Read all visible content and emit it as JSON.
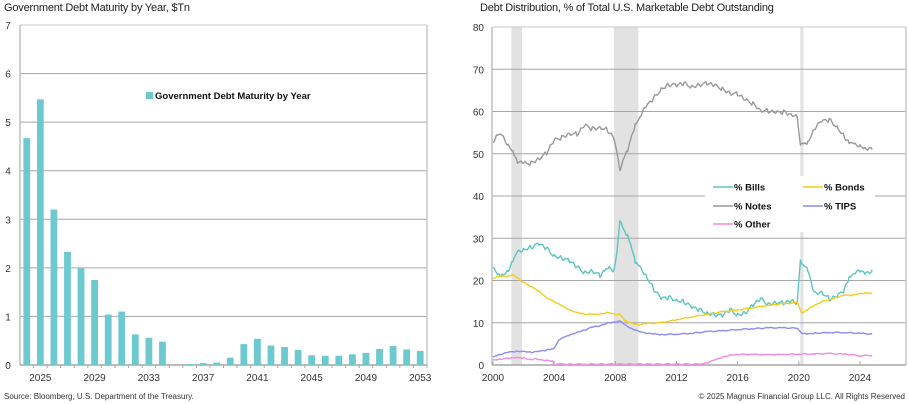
{
  "footer": {
    "source": "Source: Bloomberg, U.S. Department of the Treasury.",
    "copyright": "© 2025 Magnus Financial Group LLC. All Rights Reserved"
  },
  "chart_data": [
    {
      "type": "bar",
      "title": "Government Debt Maturity by Year, $Tn",
      "legend": [
        "Government Debt Maturity by Year"
      ],
      "legend_position": "top-center",
      "xlabel": "",
      "ylabel": "",
      "ylim": [
        0,
        7
      ],
      "yticks": [
        0,
        1,
        2,
        3,
        4,
        5,
        6,
        7
      ],
      "xtick_labels": [
        "2025",
        "2029",
        "2033",
        "2037",
        "2041",
        "2045",
        "2049",
        "2053"
      ],
      "grid": true,
      "color": "#6cc9cf",
      "categories": [
        "2024",
        "2025",
        "2026",
        "2027",
        "2028",
        "2029",
        "2030",
        "2031",
        "2032",
        "2033",
        "2034",
        "2035",
        "2036",
        "2037",
        "2038",
        "2039",
        "2040",
        "2041",
        "2042",
        "2043",
        "2044",
        "2045",
        "2046",
        "2047",
        "2048",
        "2049",
        "2050",
        "2051",
        "2052",
        "2053"
      ],
      "values": [
        4.67,
        5.47,
        3.2,
        2.33,
        1.99,
        1.75,
        1.04,
        1.1,
        0.63,
        0.56,
        0.48,
        0.0,
        0.02,
        0.04,
        0.05,
        0.15,
        0.43,
        0.54,
        0.4,
        0.37,
        0.31,
        0.2,
        0.19,
        0.19,
        0.22,
        0.25,
        0.33,
        0.39,
        0.32,
        0.29
      ]
    },
    {
      "type": "line",
      "title": "Debt Distribution, % of Total U.S. Marketable Debt Outstanding",
      "xlabel": "",
      "ylabel": "",
      "xlim": [
        2000,
        2025.7
      ],
      "ylim": [
        0,
        80
      ],
      "yticks": [
        0,
        10,
        20,
        30,
        40,
        50,
        60,
        70,
        80
      ],
      "xticks": [
        2000,
        2004,
        2008,
        2012,
        2016,
        2020,
        2024
      ],
      "grid": true,
      "legend_position": "center-right",
      "recessions": [
        [
          2001.2,
          2001.9
        ],
        [
          2007.9,
          2009.5
        ],
        [
          2020.1,
          2020.3
        ]
      ],
      "series": [
        {
          "name": "% Bills",
          "color": "#5cc5c0",
          "x": [
            2000,
            2000.3,
            2000.6,
            2001,
            2001.3,
            2001.6,
            2002,
            2002.5,
            2003,
            2003.5,
            2004,
            2004.5,
            2005,
            2005.5,
            2006,
            2006.5,
            2007,
            2007.3,
            2007.6,
            2007.9,
            2008.1,
            2008.3,
            2008.5,
            2008.8,
            2009,
            2009.3,
            2009.6,
            2010,
            2010.5,
            2011,
            2011.5,
            2012,
            2012.5,
            2013,
            2013.5,
            2014,
            2014.5,
            2015,
            2015.5,
            2016,
            2016.5,
            2017,
            2017.5,
            2018,
            2018.5,
            2019,
            2019.5,
            2019.9,
            2020.1,
            2020.3,
            2020.6,
            2021,
            2021.5,
            2022,
            2022.5,
            2023,
            2023.3,
            2023.6,
            2024,
            2024.4,
            2024.8
          ],
          "y": [
            23,
            21,
            21.5,
            22.5,
            24.5,
            26.5,
            27.5,
            28,
            28.5,
            27.5,
            26,
            25.5,
            24.5,
            23,
            22,
            22.5,
            21,
            22,
            23,
            22.5,
            27,
            34,
            32,
            31,
            29,
            24,
            23,
            21.5,
            18,
            15.5,
            16,
            15.5,
            15,
            13.5,
            13,
            12.5,
            12,
            11.5,
            13,
            12,
            12.5,
            14,
            15.5,
            14.5,
            15,
            14.5,
            15,
            14.5,
            25,
            24,
            22,
            17,
            17.5,
            15.5,
            16,
            18,
            21,
            22,
            22,
            21.5,
            22.5
          ]
        },
        {
          "name": "% Bonds",
          "color": "#f5cc19",
          "x": [
            2000,
            2000.5,
            2001,
            2001.3,
            2001.8,
            2002.5,
            2003,
            2003.5,
            2004,
            2004.5,
            2005,
            2005.5,
            2006,
            2006.5,
            2007,
            2007.5,
            2008,
            2008.3,
            2008.6,
            2009,
            2009.5,
            2010,
            2011,
            2012,
            2013,
            2014,
            2015,
            2016,
            2017,
            2018,
            2019,
            2019.9,
            2020.2,
            2020.5,
            2021,
            2021.5,
            2022,
            2022.5,
            2023,
            2023.5,
            2024,
            2024.8
          ],
          "y": [
            20.5,
            21,
            21,
            21.5,
            20,
            18.5,
            17.5,
            16,
            15,
            14,
            13,
            12.5,
            12,
            12,
            12,
            12.5,
            12,
            12,
            10.5,
            10,
            9.5,
            9.8,
            10,
            10.7,
            11.4,
            12,
            12.6,
            13,
            13.6,
            14.1,
            14.5,
            14.8,
            12.3,
            13,
            14,
            15,
            15.5,
            16,
            16.5,
            16.5,
            17,
            17
          ]
        },
        {
          "name": "% Notes",
          "color": "#999999",
          "x": [
            2000,
            2000.3,
            2000.6,
            2001,
            2001.3,
            2001.6,
            2002,
            2002.5,
            2003,
            2003.5,
            2004,
            2004.5,
            2005,
            2005.5,
            2006,
            2006.5,
            2007,
            2007.5,
            2007.9,
            2008.1,
            2008.3,
            2008.5,
            2008.8,
            2009,
            2009.3,
            2009.6,
            2010,
            2010.5,
            2011,
            2011.5,
            2012,
            2012.5,
            2013,
            2013.5,
            2014,
            2014.5,
            2015,
            2015.5,
            2016,
            2016.5,
            2017,
            2017.5,
            2018,
            2018.5,
            2019,
            2019.5,
            2019.9,
            2020.1,
            2020.3,
            2020.6,
            2021,
            2021.5,
            2022,
            2022.5,
            2023,
            2023.3,
            2023.6,
            2024,
            2024.4,
            2024.8
          ],
          "y": [
            53,
            54.5,
            54,
            52,
            51,
            48,
            47.5,
            48,
            49,
            50,
            53,
            54,
            55,
            54.5,
            56.5,
            56,
            56.5,
            55.5,
            53.5,
            50,
            46,
            49,
            50.5,
            53,
            57,
            59,
            61,
            63,
            65.5,
            66.5,
            66,
            66.5,
            66,
            66.5,
            66.5,
            66,
            65.5,
            64.5,
            64,
            62.5,
            62,
            60.5,
            60,
            59.5,
            60,
            59.5,
            59,
            52,
            52,
            53,
            56,
            57.5,
            58,
            56.5,
            54,
            52.5,
            52,
            52,
            51.5,
            51
          ]
        },
        {
          "name": "% TIPS",
          "color": "#8b8cf5",
          "x": [
            2000,
            2000.5,
            2001,
            2001.5,
            2002,
            2002.5,
            2003,
            2003.5,
            2004,
            2004.3,
            2004.6,
            2005,
            2005.5,
            2006,
            2006.5,
            2007,
            2007.5,
            2008,
            2008.3,
            2008.6,
            2009,
            2009.5,
            2010,
            2010.5,
            2011,
            2012,
            2013,
            2014,
            2015,
            2016,
            2017,
            2018,
            2019,
            2019.9,
            2020.2,
            2020.5,
            2021,
            2022,
            2023,
            2024,
            2024.8
          ],
          "y": [
            2,
            2.5,
            3,
            3.2,
            3.3,
            3,
            3.2,
            3.5,
            4,
            6,
            6.5,
            7,
            7.8,
            8.3,
            9,
            9.2,
            10,
            10.2,
            10.5,
            9.5,
            8.7,
            8.1,
            7.5,
            7.3,
            7.2,
            7.3,
            7.5,
            7.9,
            8.1,
            8.4,
            8.6,
            8.8,
            8.8,
            8.7,
            7.6,
            7.3,
            7.5,
            7.7,
            7.7,
            7.5,
            7.3
          ]
        },
        {
          "name": "% Other",
          "color": "#f08ae0",
          "x": [
            2000,
            2000.5,
            2001,
            2001.5,
            2002,
            2002.5,
            2002.8,
            2003,
            2003.5,
            2003.9,
            2004,
            2004.3,
            2005,
            2006,
            2008,
            2010,
            2012,
            2013.5,
            2014,
            2014.5,
            2015,
            2015.5,
            2016,
            2017,
            2018,
            2019,
            2020,
            2021,
            2022,
            2023,
            2024,
            2024.8
          ],
          "y": [
            1.2,
            1.4,
            1.6,
            1.7,
            1.7,
            1.3,
            1.6,
            1.2,
            1.1,
            1,
            0,
            0.2,
            0.2,
            0.2,
            0.2,
            0.2,
            0.2,
            0.2,
            0.5,
            1.2,
            1.8,
            2.4,
            2.5,
            2.5,
            2.4,
            2.5,
            2.6,
            2.6,
            2.7,
            2.6,
            2.2,
            2.3
          ]
        }
      ]
    }
  ]
}
